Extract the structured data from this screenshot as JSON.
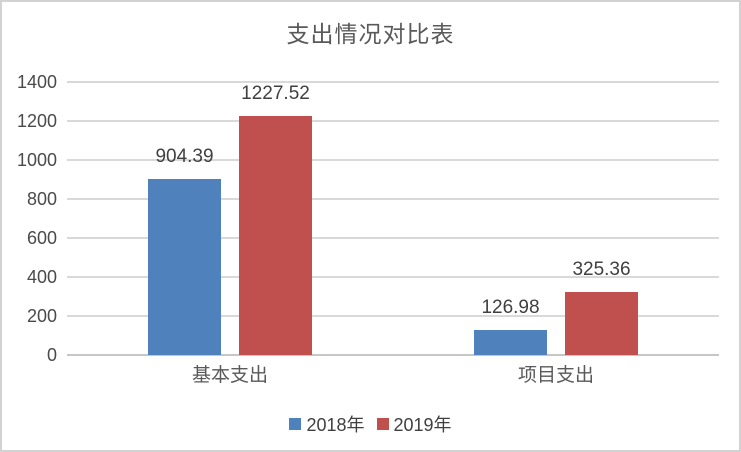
{
  "chart_data": {
    "type": "bar",
    "title": "支出情况对比表",
    "categories": [
      "基本支出",
      "项目支出"
    ],
    "series": [
      {
        "name": "2018年",
        "color": "#4F81BD",
        "values": [
          904.39,
          126.98
        ]
      },
      {
        "name": "2019年",
        "color": "#C0504D",
        "values": [
          1227.52,
          325.36
        ]
      }
    ],
    "data_labels": [
      [
        "904.39",
        "126.98"
      ],
      [
        "1227.52",
        "325.36"
      ]
    ],
    "ylim": [
      0,
      1400
    ],
    "yticks": [
      0,
      200,
      400,
      600,
      800,
      1000,
      1200,
      1400
    ],
    "xlabel": "",
    "ylabel": "",
    "grid": true,
    "legend_position": "bottom",
    "colors": {
      "grid": "#d9d9d9",
      "axis": "#c6c6c6",
      "title_text": "#595959",
      "tick_text": "#4a4a4a",
      "label_text": "#404040",
      "frame_border": "#d2d2d2"
    }
  }
}
